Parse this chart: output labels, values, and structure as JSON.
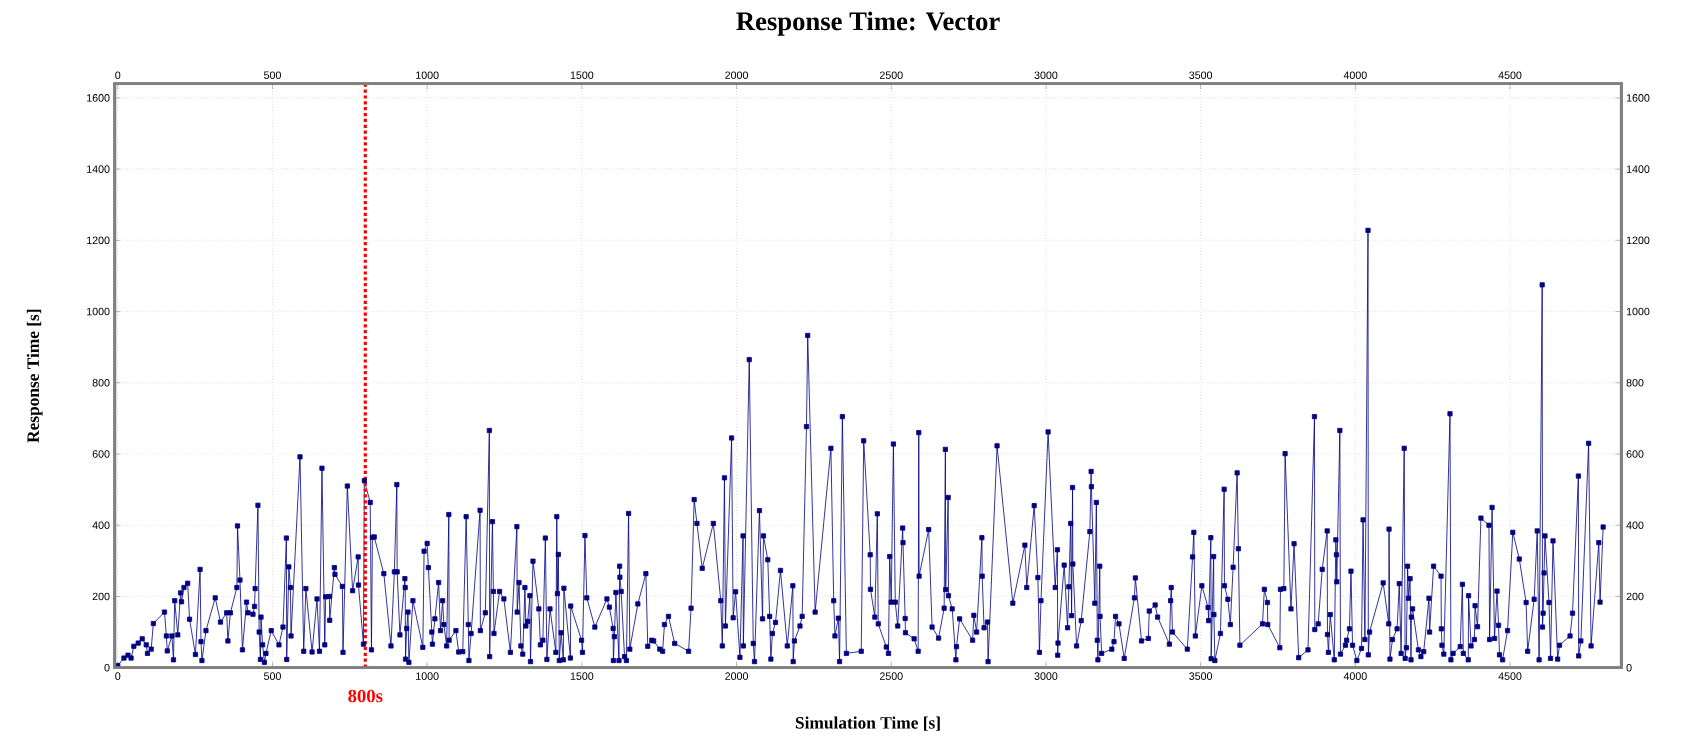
{
  "chart_data": {
    "type": "line",
    "title": "Response Time: Vector",
    "xlabel": "Simulation Time [s]",
    "ylabel": "Response Time [s]",
    "color": "#000080",
    "marker": "square",
    "line_style": "solid",
    "grid": true,
    "xlim": [
      -10,
      4860
    ],
    "ylim": [
      0,
      1640
    ],
    "xticks": [
      0,
      500,
      1000,
      1500,
      2000,
      2500,
      3000,
      3500,
      4000,
      4500
    ],
    "yticks": [
      0,
      200,
      400,
      600,
      800,
      1000,
      1200,
      1400,
      1600
    ],
    "x2lim": [
      -10,
      4860
    ],
    "x2ticks": [
      0,
      500,
      1000,
      1500,
      2000,
      2500,
      3000,
      3500,
      4000,
      4500
    ],
    "y2lim": [
      0,
      1640
    ],
    "y2ticks": [
      0,
      200,
      400,
      600,
      800,
      1000,
      1200,
      1400,
      1600
    ],
    "ref_lines": [
      {
        "axis": "x",
        "value": 800,
        "label": "800s",
        "color": "#ff0000",
        "line_style": "dotted"
      }
    ],
    "x": [
      0,
      20,
      33,
      43,
      52,
      66,
      79,
      92,
      96,
      108,
      115,
      151,
      157,
      160,
      175,
      180,
      184,
      194,
      203,
      206,
      214,
      226,
      232,
      251,
      266,
      269,
      272,
      285,
      315,
      332,
      352,
      356,
      364,
      385,
      387,
      395,
      403,
      416,
      421,
      437,
      442,
      444,
      453,
      457,
      461,
      463,
      468,
      474,
      479,
      496,
      521,
      534,
      545,
      546,
      553,
      558,
      560,
      589,
      601,
      608,
      628,
      644,
      652,
      660,
      669,
      672,
      684,
      685,
      700,
      702,
      726,
      728,
      742,
      759,
      777,
      778,
      794,
      797,
      816,
      820,
      823,
      829,
      860,
      883,
      894,
      902,
      903,
      912,
      928,
      929,
      930,
      934,
      938,
      941,
      954,
      986,
      990,
      1000,
      1004,
      1015,
      1017,
      1025,
      1037,
      1043,
      1050,
      1054,
      1063,
      1070,
      1071,
      1093,
      1102,
      1115,
      1126,
      1133,
      1135,
      1142,
      1171,
      1172,
      1188,
      1201,
      1202,
      1211,
      1214,
      1216,
      1234,
      1248,
      1269,
      1290,
      1291,
      1297,
      1303,
      1309,
      1316,
      1319,
      1325,
      1332,
      1334,
      1342,
      1361,
      1366,
      1374,
      1382,
      1387,
      1397,
      1416,
      1419,
      1421,
      1424,
      1427,
      1433,
      1440,
      1442,
      1463,
      1464,
      1499,
      1502,
      1510,
      1516,
      1542,
      1581,
      1589,
      1601,
      1602,
      1605,
      1610,
      1620,
      1622,
      1623,
      1627,
      1638,
      1644,
      1651,
      1655,
      1681,
      1707,
      1713,
      1726,
      1732,
      1752,
      1761,
      1767,
      1780,
      1800,
      1845,
      1853,
      1863,
      1872,
      1889,
      1925,
      1949,
      1954,
      1961,
      1964,
      1984,
      1989,
      1997,
      2011,
      2021,
      2022,
      2041,
      2054,
      2058,
      2074,
      2084,
      2087,
      2101,
      2107,
      2111,
      2116,
      2126,
      2142,
      2164,
      2182,
      2183,
      2187,
      2205,
      2212,
      2226,
      2230,
      2254,
      2305,
      2314,
      2318,
      2329,
      2333,
      2342,
      2355,
      2403,
      2411,
      2432,
      2433,
      2447,
      2455,
      2458,
      2484,
      2491,
      2495,
      2500,
      2507,
      2513,
      2521,
      2537,
      2538,
      2545,
      2546,
      2574,
      2587,
      2589,
      2590,
      2621,
      2632,
      2653,
      2671,
      2675,
      2676,
      2684,
      2685,
      2697,
      2709,
      2711,
      2721,
      2763,
      2767,
      2776,
      2793,
      2794,
      2800,
      2811,
      2813,
      2842,
      2893,
      2932,
      2938,
      2962,
      2974,
      2979,
      2984,
      3007,
      3030,
      3037,
      3038,
      3039,
      3059,
      3070,
      3074,
      3080,
      3083,
      3086,
      3087,
      3099,
      3114,
      3142,
      3146,
      3147,
      3158,
      3163,
      3166,
      3168,
      3174,
      3175,
      3180,
      3213,
      3220,
      3225,
      3236,
      3253,
      3286,
      3289,
      3309,
      3331,
      3334,
      3353,
      3361,
      3399,
      3403,
      3405,
      3409,
      3457,
      3474,
      3478,
      3483,
      3504,
      3524,
      3526,
      3533,
      3534,
      3542,
      3543,
      3546,
      3564,
      3576,
      3577,
      3588,
      3596,
      3605,
      3618,
      3622,
      3627,
      3700,
      3706,
      3716,
      3717,
      3756,
      3758,
      3769,
      3773,
      3792,
      3802,
      3817,
      3847,
      3868,
      3869,
      3880,
      3893,
      3909,
      3910,
      3913,
      3919,
      3932,
      3937,
      3939,
      3940,
      3950,
      3952,
      3968,
      3972,
      3981,
      3986,
      3991,
      4005,
      4020,
      4025,
      4031,
      4041,
      4042,
      4046,
      4090,
      4108,
      4109,
      4112,
      4120,
      4135,
      4142,
      4148,
      4158,
      4161,
      4165,
      4169,
      4172,
      4177,
      4180,
      4181,
      4185,
      4204,
      4212,
      4221,
      4238,
      4240,
      4253,
      4277,
      4278,
      4280,
      4286,
      4306,
      4309,
      4316,
      4339,
      4346,
      4349,
      4365,
      4366,
      4374,
      4385,
      4387,
      4395,
      4406,
      4432,
      4434,
      4442,
      4450,
      4458,
      4463,
      4466,
      4476,
      4492,
      4509,
      4530,
      4552,
      4557,
      4578,
      4588,
      4594,
      4604,
      4605,
      4607,
      4610,
      4613,
      4626,
      4631,
      4639,
      4654,
      4660,
      4694,
      4702,
      4721,
      4722,
      4729,
      4754,
      4762,
      4787,
      4791,
      4801
    ],
    "values": [
      6,
      27,
      35,
      27,
      60,
      69,
      81,
      64,
      40,
      52,
      124,
      156,
      89,
      47,
      89,
      22,
      188,
      92,
      210,
      185,
      225,
      237,
      136,
      37,
      276,
      73,
      20,
      104,
      196,
      128,
      154,
      75,
      154,
      225,
      398,
      246,
      50,
      184,
      154,
      150,
      172,
      222,
      456,
      100,
      23,
      142,
      64,
      15,
      40,
      104,
      64,
      114,
      364,
      23,
      283,
      225,
      89,
      592,
      46,
      222,
      44,
      193,
      46,
      560,
      64,
      199,
      200,
      133,
      281,
      262,
      228,
      43,
      510,
      216,
      311,
      232,
      66,
      525,
      464,
      50,
      366,
      367,
      264,
      61,
      269,
      514,
      269,
      92,
      250,
      225,
      24,
      110,
      156,
      15,
      188,
      57,
      327,
      349,
      281,
      100,
      66,
      137,
      239,
      104,
      188,
      121,
      61,
      430,
      77,
      104,
      44,
      45,
      424,
      121,
      20,
      96,
      442,
      104,
      154,
      666,
      31,
      410,
      214,
      96,
      214,
      193,
      43,
      396,
      156,
      239,
      61,
      38,
      225,
      117,
      130,
      202,
      17,
      299,
      165,
      64,
      77,
      364,
      23,
      165,
      43,
      424,
      208,
      318,
      20,
      98,
      22,
      223,
      27,
      173,
      77,
      43,
      371,
      196,
      114,
      193,
      170,
      110,
      20,
      87,
      211,
      20,
      285,
      254,
      214,
      31,
      20,
      433,
      52,
      179,
      264,
      60,
      77,
      75,
      52,
      46,
      121,
      144,
      68,
      46,
      167,
      472,
      405,
      279,
      405,
      188,
      61,
      533,
      117,
      645,
      140,
      213,
      29,
      370,
      61,
      865,
      68,
      17,
      441,
      137,
      370,
      303,
      144,
      24,
      96,
      127,
      273,
      61,
      230,
      17,
      75,
      117,
      144,
      677,
      933,
      156,
      616,
      188,
      89,
      139,
      17,
      705,
      40,
      46,
      637,
      317,
      220,
      142,
      432,
      123,
      58,
      40,
      312,
      184,
      628,
      184,
      117,
      392,
      351,
      138,
      98,
      81,
      46,
      660,
      257,
      388,
      114,
      83,
      167,
      613,
      219,
      478,
      202,
      165,
      22,
      59,
      137,
      77,
      147,
      100,
      365,
      257,
      112,
      128,
      17,
      623,
      181,
      344,
      225,
      455,
      253,
      43,
      188,
      662,
      225,
      331,
      35,
      69,
      288,
      112,
      227,
      405,
      146,
      506,
      291,
      61,
      132,
      382,
      551,
      508,
      181,
      464,
      77,
      22,
      285,
      144,
      40,
      52,
      73,
      144,
      123,
      26,
      196,
      252,
      75,
      82,
      159,
      176,
      142,
      66,
      188,
      225,
      100,
      52,
      311,
      380,
      89,
      230,
      169,
      132,
      365,
      25,
      312,
      149,
      20,
      96,
      501,
      230,
      192,
      121,
      282,
      547,
      334,
      63,
      123,
      220,
      183,
      121,
      56,
      220,
      222,
      601,
      165,
      348,
      28,
      50,
      705,
      107,
      123,
      276,
      384,
      93,
      43,
      149,
      22,
      359,
      317,
      241,
      666,
      38,
      63,
      77,
      109,
      271,
      63,
      20,
      54,
      415,
      79,
      1228,
      36,
      100,
      238,
      123,
      389,
      24,
      79,
      109,
      236,
      40,
      616,
      26,
      56,
      285,
      195,
      250,
      22,
      142,
      165,
      50,
      31,
      45,
      195,
      100,
      285,
      257,
      109,
      63,
      38,
      713,
      22,
      40,
      59,
      234,
      40,
      22,
      202,
      61,
      79,
      174,
      115,
      420,
      400,
      79,
      450,
      82,
      215,
      119,
      36,
      22,
      104,
      380,
      305,
      183,
      46,
      192,
      384,
      22,
      1075,
      114,
      153,
      266,
      370,
      183,
      26,
      356,
      24,
      63,
      89,
      153,
      538,
      33,
      75,
      630,
      61,
      351,
      184,
      395
    ]
  }
}
